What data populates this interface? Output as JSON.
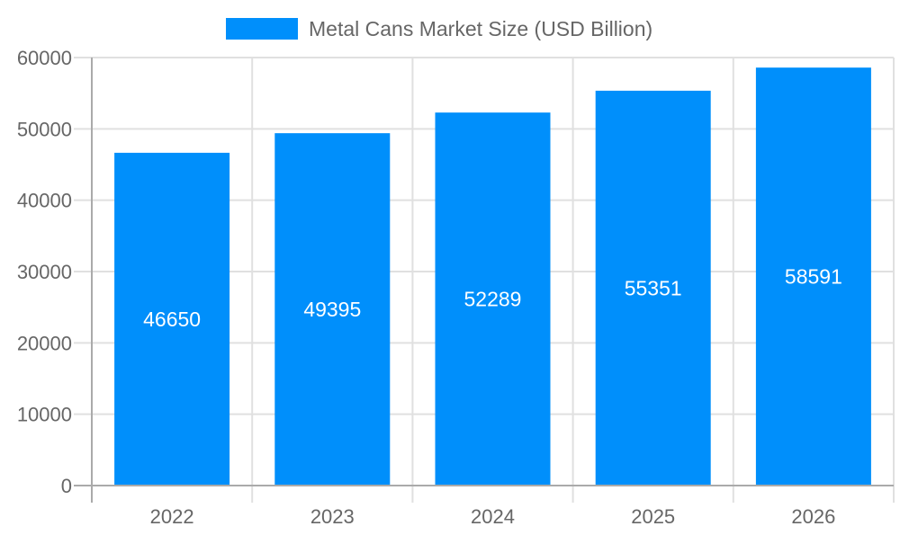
{
  "chart_data": {
    "type": "bar",
    "title": "",
    "xlabel": "",
    "ylabel": "",
    "categories": [
      "2022",
      "2023",
      "2024",
      "2025",
      "2026"
    ],
    "series": [
      {
        "name": "Metal Cans Market Size (USD Billion)",
        "values": [
          46650,
          49395,
          52289,
          55351,
          58591
        ],
        "color": "#008ffb"
      }
    ],
    "ylim": [
      0,
      60000
    ],
    "yticks": [
      "0",
      "10000",
      "20000",
      "30000",
      "40000",
      "50000",
      "60000"
    ],
    "data_labels": [
      "46650",
      "49395",
      "52289",
      "55351",
      "58591"
    ],
    "grid": true,
    "legend": "top-center"
  }
}
